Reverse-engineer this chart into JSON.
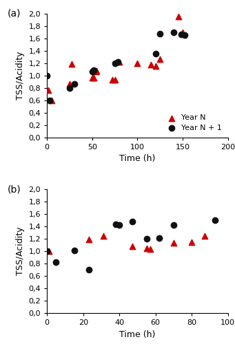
{
  "panel_a": {
    "label": "(a)",
    "year_n": {
      "x": [
        1,
        5,
        25,
        27,
        50,
        52,
        54,
        55,
        72,
        75,
        80,
        100,
        115,
        120,
        125,
        145,
        150
      ],
      "y": [
        0.77,
        0.6,
        0.87,
        1.19,
        0.97,
        0.97,
        1.06,
        1.08,
        0.93,
        0.93,
        1.22,
        1.2,
        1.18,
        1.15,
        1.27,
        1.95,
        1.7
      ]
    },
    "year_n1": {
      "x": [
        0,
        3,
        25,
        30,
        50,
        52,
        75,
        78,
        120,
        125,
        140,
        148,
        152
      ],
      "y": [
        1.0,
        0.6,
        0.8,
        0.87,
        1.07,
        1.09,
        1.2,
        1.22,
        1.35,
        1.68,
        1.7,
        1.67,
        1.65
      ]
    },
    "xlim": [
      0,
      200
    ],
    "ylim": [
      0.0,
      2.0
    ],
    "xticks": [
      0,
      50,
      100,
      150,
      200
    ],
    "yticks": [
      0.0,
      0.2,
      0.4,
      0.6,
      0.8,
      1.0,
      1.2,
      1.4,
      1.6,
      1.8,
      2.0
    ],
    "xlabel": "Time (h)",
    "ylabel": "TSS/Acidity"
  },
  "panel_b": {
    "label": "(b)",
    "year_n": {
      "x": [
        1,
        23,
        31,
        47,
        55,
        57,
        70,
        80,
        87
      ],
      "y": [
        1.0,
        1.19,
        1.25,
        1.08,
        1.05,
        1.04,
        1.14,
        1.15,
        1.25
      ]
    },
    "year_n1": {
      "x": [
        0,
        5,
        15,
        23,
        38,
        40,
        47,
        55,
        62,
        70,
        93
      ],
      "y": [
        1.0,
        0.82,
        1.01,
        0.7,
        1.43,
        1.42,
        1.48,
        1.2,
        1.21,
        1.42,
        1.5
      ]
    },
    "xlim": [
      0,
      100
    ],
    "ylim": [
      0.0,
      2.0
    ],
    "xticks": [
      0,
      20,
      40,
      60,
      80,
      100
    ],
    "yticks": [
      0.0,
      0.2,
      0.4,
      0.6,
      0.8,
      1.0,
      1.2,
      1.4,
      1.6,
      1.8,
      2.0
    ],
    "xlabel": "Time (h)",
    "ylabel": "TSS/Acidity"
  },
  "legend": {
    "year_n_label": "Year N",
    "year_n1_label": "Year N + 1"
  },
  "triangle_color": "#CC0000",
  "circle_color": "#111111",
  "marker_size": 6
}
